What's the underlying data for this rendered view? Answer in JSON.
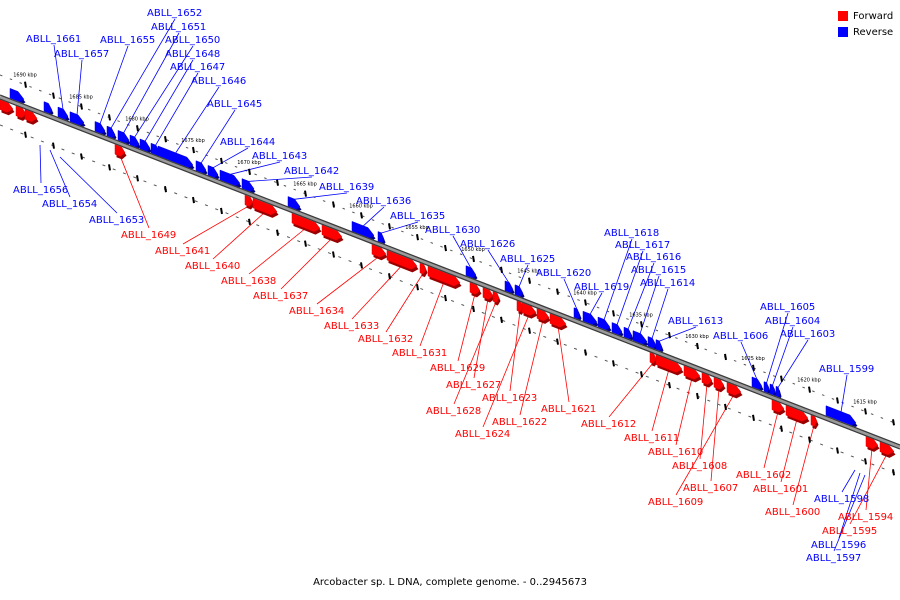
{
  "colors": {
    "forward": "#ff0000",
    "reverse": "#0000ff"
  },
  "legend": [
    {
      "label": "Forward",
      "strand": "forward",
      "color": "#ff0000"
    },
    {
      "label": "Reverse",
      "strand": "reverse",
      "color": "#0000ff"
    }
  ],
  "caption": "Arcobacter sp. L DNA, complete genome. - 0..2945673",
  "ticks": [
    {
      "label": "1690 kbp",
      "pos_kbp": 1690
    },
    {
      "label": "1685 kbp",
      "pos_kbp": 1685
    },
    {
      "label": "1680 kbp",
      "pos_kbp": 1680
    },
    {
      "label": "1675 kbp",
      "pos_kbp": 1675
    },
    {
      "label": "1670 kbp",
      "pos_kbp": 1670
    },
    {
      "label": "1665 kbp",
      "pos_kbp": 1665
    },
    {
      "label": "1660 kbp",
      "pos_kbp": 1660
    },
    {
      "label": "1655 kbp",
      "pos_kbp": 1655
    },
    {
      "label": "1650 kbp",
      "pos_kbp": 1650
    },
    {
      "label": "1645 kbp",
      "pos_kbp": 1645
    },
    {
      "label": "1640 kbp",
      "pos_kbp": 1640
    },
    {
      "label": "1635 kbp",
      "pos_kbp": 1635
    },
    {
      "label": "1630 kbp",
      "pos_kbp": 1630
    },
    {
      "label": "1625 kbp",
      "pos_kbp": 1625
    },
    {
      "label": "1620 kbp",
      "pos_kbp": 1620
    },
    {
      "label": "1615 kbp",
      "pos_kbp": 1615
    }
  ],
  "genes": [
    {
      "label": "ABLL_1661",
      "strand": "reverse"
    },
    {
      "label": "ABLL_1657",
      "strand": "reverse"
    },
    {
      "label": "ABLL_1655",
      "strand": "reverse"
    },
    {
      "label": "ABLL_1652",
      "strand": "reverse"
    },
    {
      "label": "ABLL_1651",
      "strand": "reverse"
    },
    {
      "label": "ABLL_1650",
      "strand": "reverse"
    },
    {
      "label": "ABLL_1648",
      "strand": "reverse"
    },
    {
      "label": "ABLL_1647",
      "strand": "reverse"
    },
    {
      "label": "ABLL_1646",
      "strand": "reverse"
    },
    {
      "label": "ABLL_1645",
      "strand": "reverse"
    },
    {
      "label": "ABLL_1644",
      "strand": "reverse"
    },
    {
      "label": "ABLL_1643",
      "strand": "reverse"
    },
    {
      "label": "ABLL_1642",
      "strand": "reverse"
    },
    {
      "label": "ABLL_1639",
      "strand": "reverse"
    },
    {
      "label": "ABLL_1636",
      "strand": "reverse"
    },
    {
      "label": "ABLL_1635",
      "strand": "reverse"
    },
    {
      "label": "ABLL_1630",
      "strand": "reverse"
    },
    {
      "label": "ABLL_1626",
      "strand": "reverse"
    },
    {
      "label": "ABLL_1625",
      "strand": "reverse"
    },
    {
      "label": "ABLL_1620",
      "strand": "reverse"
    },
    {
      "label": "ABLL_1619",
      "strand": "reverse"
    },
    {
      "label": "ABLL_1618",
      "strand": "reverse"
    },
    {
      "label": "ABLL_1617",
      "strand": "reverse"
    },
    {
      "label": "ABLL_1616",
      "strand": "reverse"
    },
    {
      "label": "ABLL_1615",
      "strand": "reverse"
    },
    {
      "label": "ABLL_1614",
      "strand": "reverse"
    },
    {
      "label": "ABLL_1613",
      "strand": "reverse"
    },
    {
      "label": "ABLL_1606",
      "strand": "reverse"
    },
    {
      "label": "ABLL_1605",
      "strand": "reverse"
    },
    {
      "label": "ABLL_1604",
      "strand": "reverse"
    },
    {
      "label": "ABLL_1603",
      "strand": "reverse"
    },
    {
      "label": "ABLL_1599",
      "strand": "reverse"
    },
    {
      "label": "ABLL_1656",
      "strand": "reverse"
    },
    {
      "label": "ABLL_1654",
      "strand": "reverse"
    },
    {
      "label": "ABLL_1653",
      "strand": "reverse"
    },
    {
      "label": "ABLL_1598",
      "strand": "reverse"
    },
    {
      "label": "ABLL_1596",
      "strand": "reverse"
    },
    {
      "label": "ABLL_1597",
      "strand": "reverse"
    },
    {
      "label": "ABLL_1649",
      "strand": "forward"
    },
    {
      "label": "ABLL_1641",
      "strand": "forward"
    },
    {
      "label": "ABLL_1640",
      "strand": "forward"
    },
    {
      "label": "ABLL_1638",
      "strand": "forward"
    },
    {
      "label": "ABLL_1637",
      "strand": "forward"
    },
    {
      "label": "ABLL_1634",
      "strand": "forward"
    },
    {
      "label": "ABLL_1633",
      "strand": "forward"
    },
    {
      "label": "ABLL_1632",
      "strand": "forward"
    },
    {
      "label": "ABLL_1631",
      "strand": "forward"
    },
    {
      "label": "ABLL_1629",
      "strand": "forward"
    },
    {
      "label": "ABLL_1627",
      "strand": "forward"
    },
    {
      "label": "ABLL_1628",
      "strand": "forward"
    },
    {
      "label": "ABLL_1623",
      "strand": "forward"
    },
    {
      "label": "ABLL_1624",
      "strand": "forward"
    },
    {
      "label": "ABLL_1622",
      "strand": "forward"
    },
    {
      "label": "ABLL_1621",
      "strand": "forward"
    },
    {
      "label": "ABLL_1612",
      "strand": "forward"
    },
    {
      "label": "ABLL_1611",
      "strand": "forward"
    },
    {
      "label": "ABLL_1610",
      "strand": "forward"
    },
    {
      "label": "ABLL_1608",
      "strand": "forward"
    },
    {
      "label": "ABLL_1607",
      "strand": "forward"
    },
    {
      "label": "ABLL_1609",
      "strand": "forward"
    },
    {
      "label": "ABLL_1602",
      "strand": "forward"
    },
    {
      "label": "ABLL_1601",
      "strand": "forward"
    },
    {
      "label": "ABLL_1600",
      "strand": "forward"
    },
    {
      "label": "ABLL_1594",
      "strand": "forward"
    },
    {
      "label": "ABLL_1595",
      "strand": "forward"
    }
  ]
}
